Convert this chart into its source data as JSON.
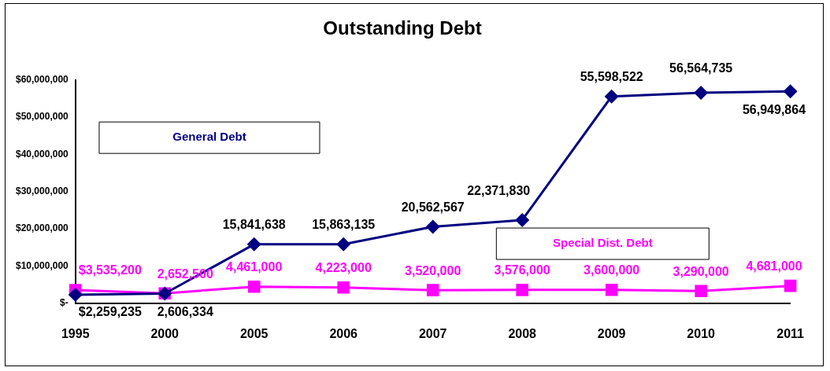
{
  "chart_data": {
    "type": "line",
    "title": "Outstanding Debt",
    "categories": [
      "1995",
      "2000",
      "2005",
      "2006",
      "2007",
      "2008",
      "2009",
      "2010",
      "2011"
    ],
    "series": [
      {
        "name": "General Debt",
        "color": "#000080",
        "marker": "diamond",
        "values": [
          2259235,
          2606334,
          15841638,
          15863135,
          20562567,
          22371830,
          55598522,
          56564735,
          56949864
        ],
        "value_labels": [
          "$2,259,235",
          "2,606,334",
          "15,841,638",
          "15,863,135",
          "20,562,567",
          "22,371,830",
          "55,598,522",
          "56,564,735",
          "56,949,864"
        ]
      },
      {
        "name": "Special Dist. Debt",
        "color": "#ff00ff",
        "marker": "square",
        "values": [
          3535200,
          2652500,
          4461000,
          4223000,
          3520000,
          3576000,
          3600000,
          3290000,
          4681000
        ],
        "value_labels": [
          "$3,535,200",
          "2,652,500",
          "4,461,000",
          "4,223,000",
          "3,520,000",
          "3,576,000",
          "3,600,000",
          "3,290,000",
          "4,681,000"
        ]
      }
    ],
    "ylim": [
      0,
      60000000
    ],
    "yticks": [
      {
        "value": 0,
        "label": "$-"
      },
      {
        "value": 10000000,
        "label": "$10,000,000"
      },
      {
        "value": 20000000,
        "label": "$20,000,000"
      },
      {
        "value": 30000000,
        "label": "$30,000,000"
      },
      {
        "value": 40000000,
        "label": "$40,000,000"
      },
      {
        "value": 50000000,
        "label": "$50,000,000"
      },
      {
        "value": 60000000,
        "label": "$60,000,000"
      }
    ],
    "grid": false,
    "legend": false
  }
}
